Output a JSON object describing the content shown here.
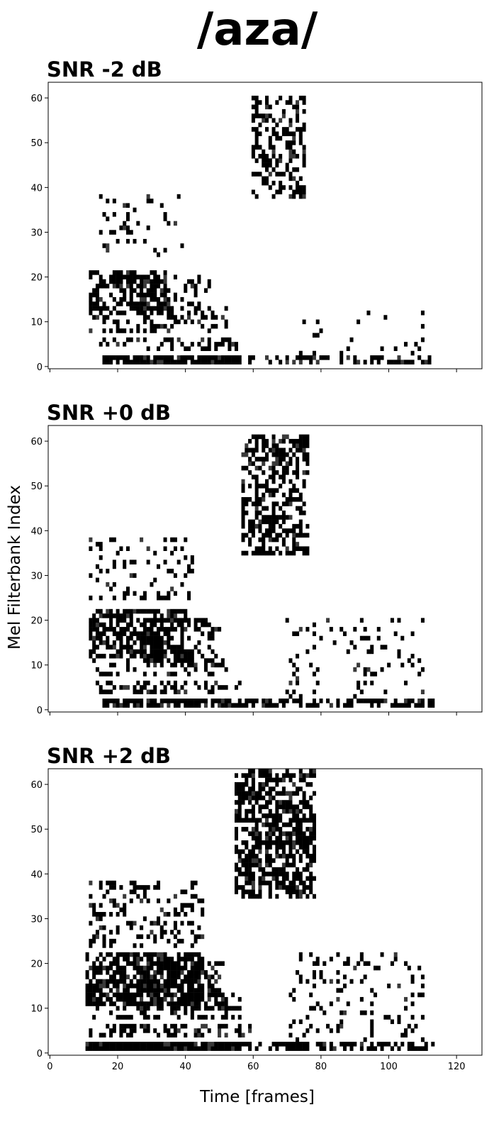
{
  "title": "/aza/",
  "xlabel": "Time [frames]",
  "ylabel": "Mel Filterbank Index",
  "chart_data": {
    "type": "heatmap",
    "title": "/aza/",
    "xlabel": "Time [frames]",
    "ylabel": "Mel Filterbank Index",
    "x_range": [
      0,
      127
    ],
    "y_range": [
      0,
      63
    ],
    "x_ticks": [
      0,
      20,
      40,
      60,
      80,
      100,
      120
    ],
    "y_ticks": [
      0,
      10,
      20,
      30,
      40,
      50,
      60
    ],
    "colormap": "binary (white = 0, black = active)",
    "grid": false,
    "legend": "none",
    "note": "Binary-masked mel spectrogram; black cells mark active time-frequency bins. Regions below are approximate readings.",
    "panels": [
      {
        "title": "SNR -2 dB",
        "regions": [
          {
            "x": [
              60,
              75
            ],
            "y": [
              38,
              60
            ],
            "density": 0.42
          },
          {
            "x": [
              12,
              35
            ],
            "y": [
              12,
              21
            ],
            "density": 0.58
          },
          {
            "x": [
              26,
              48
            ],
            "y": [
              11,
              20
            ],
            "density": 0.28
          },
          {
            "x": [
              15,
              40
            ],
            "y": [
              25,
              38
            ],
            "density": 0.1
          },
          {
            "x": [
              12,
              52
            ],
            "y": [
              8,
              13
            ],
            "density": 0.22
          },
          {
            "x": [
              15,
              55
            ],
            "y": [
              4,
              6
            ],
            "density": 0.35
          },
          {
            "x": [
              16,
              56
            ],
            "y": [
              1,
              2
            ],
            "density": 0.8
          },
          {
            "x": [
              56,
              113
            ],
            "y": [
              1,
              2
            ],
            "density": 0.45
          },
          {
            "x": [
              74,
              110
            ],
            "y": [
              3,
              12
            ],
            "density": 0.08
          }
        ]
      },
      {
        "title": "SNR +0 dB",
        "regions": [
          {
            "x": [
              57,
              76
            ],
            "y": [
              35,
              61
            ],
            "density": 0.52
          },
          {
            "x": [
              12,
              40
            ],
            "y": [
              12,
              22
            ],
            "density": 0.62
          },
          {
            "x": [
              26,
              50
            ],
            "y": [
              10,
              20
            ],
            "density": 0.32
          },
          {
            "x": [
              12,
              42
            ],
            "y": [
              25,
              38
            ],
            "density": 0.14
          },
          {
            "x": [
              12,
              52
            ],
            "y": [
              8,
              13
            ],
            "density": 0.25
          },
          {
            "x": [
              14,
              56
            ],
            "y": [
              4,
              6
            ],
            "density": 0.38
          },
          {
            "x": [
              16,
              56
            ],
            "y": [
              1,
              2
            ],
            "density": 0.88
          },
          {
            "x": [
              57,
              113
            ],
            "y": [
              1,
              2
            ],
            "density": 0.52
          },
          {
            "x": [
              70,
              110
            ],
            "y": [
              3,
              20
            ],
            "density": 0.1
          }
        ]
      },
      {
        "title": "SNR +2 dB",
        "regions": [
          {
            "x": [
              55,
              78
            ],
            "y": [
              35,
              63
            ],
            "density": 0.62
          },
          {
            "x": [
              11,
              45
            ],
            "y": [
              11,
              22
            ],
            "density": 0.72
          },
          {
            "x": [
              26,
              52
            ],
            "y": [
              10,
              20
            ],
            "density": 0.4
          },
          {
            "x": [
              12,
              45
            ],
            "y": [
              24,
              38
            ],
            "density": 0.24
          },
          {
            "x": [
              12,
              56
            ],
            "y": [
              8,
              13
            ],
            "density": 0.3
          },
          {
            "x": [
              12,
              60
            ],
            "y": [
              4,
              6
            ],
            "density": 0.45
          },
          {
            "x": [
              11,
              56
            ],
            "y": [
              1,
              2
            ],
            "density": 0.95
          },
          {
            "x": [
              57,
              113
            ],
            "y": [
              1,
              2
            ],
            "density": 0.6
          },
          {
            "x": [
              70,
              110
            ],
            "y": [
              3,
              22
            ],
            "density": 0.14
          }
        ]
      }
    ]
  }
}
